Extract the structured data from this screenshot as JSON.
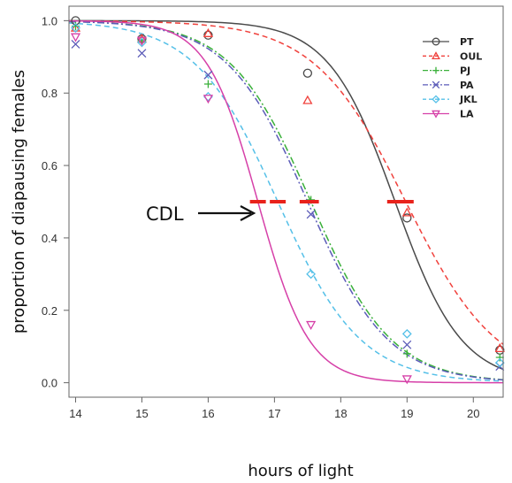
{
  "chart_data": {
    "type": "line",
    "xlabel": "hours of light",
    "ylabel": "proportion of diapausing females",
    "xlim": [
      13.9,
      20.45
    ],
    "ylim": [
      -0.04,
      1.04
    ],
    "x_ticks": [
      "14",
      "15",
      "16",
      "17",
      "18",
      "19",
      "20"
    ],
    "y_ticks": [
      "0.0",
      "0.2",
      "0.4",
      "0.6",
      "0.8",
      "1.0"
    ],
    "grid": false,
    "legend_position": "top-right",
    "annotation": {
      "text": "CDL",
      "y": 0.5
    },
    "series": [
      {
        "name": "PT",
        "marker": "circle",
        "color": "#4a4a4a",
        "dash": "none",
        "cdl": 18.82,
        "x": [
          14,
          15,
          16,
          17.5,
          19,
          20.4
        ],
        "y": [
          1.0,
          0.95,
          0.96,
          0.855,
          0.455,
          0.09
        ]
      },
      {
        "name": "OUL",
        "marker": "triangle",
        "color": "#f0413c",
        "dash": "dashed",
        "cdl": 18.98,
        "x": [
          14,
          15,
          16,
          17.5,
          19,
          20.4
        ],
        "y": [
          0.98,
          0.95,
          0.965,
          0.78,
          0.47,
          0.095
        ]
      },
      {
        "name": "PJ",
        "marker": "plus",
        "color": "#3ab03a",
        "dash": "dotdash",
        "cdl": 17.55,
        "x": [
          14,
          15,
          16,
          17.55,
          19,
          20.4
        ],
        "y": [
          0.985,
          0.945,
          0.825,
          0.505,
          0.08,
          0.07
        ]
      },
      {
        "name": "PA",
        "marker": "x",
        "color": "#5b5bb8",
        "dash": "dotdash",
        "cdl": 17.5,
        "x": [
          14,
          15,
          16,
          17.55,
          19,
          20.4
        ],
        "y": [
          0.935,
          0.91,
          0.85,
          0.465,
          0.105,
          0.045
        ]
      },
      {
        "name": "JKL",
        "marker": "diamond",
        "color": "#55c0e8",
        "dash": "dashed",
        "cdl": 17.05,
        "x": [
          14,
          15,
          16,
          17.55,
          19,
          20.4
        ],
        "y": [
          0.98,
          0.94,
          0.79,
          0.3,
          0.135,
          0.055
        ]
      },
      {
        "name": "LA",
        "marker": "invtriangle",
        "color": "#d640a8",
        "dash": "solid",
        "cdl": 16.75,
        "x": [
          14,
          15,
          16,
          17.55,
          19
        ],
        "y": [
          0.955,
          0.945,
          0.785,
          0.16,
          0.01
        ]
      }
    ],
    "curves": [
      {
        "series": "PT",
        "midpoint": 18.82,
        "slope": 2.0,
        "color": "#4a4a4a",
        "dash": "none"
      },
      {
        "series": "OUL",
        "midpoint": 18.98,
        "slope": 1.45,
        "color": "#f0413c",
        "dash": "6 4"
      },
      {
        "series": "PJ",
        "midpoint": 17.55,
        "slope": 1.65,
        "color": "#3ab03a",
        "dash": "8 3 2 3"
      },
      {
        "series": "PA",
        "midpoint": 17.5,
        "slope": 1.65,
        "color": "#5b5bb8",
        "dash": "8 3 2 3"
      },
      {
        "series": "JKL",
        "midpoint": 17.05,
        "slope": 1.6,
        "color": "#55c0e8",
        "dash": "6 4"
      },
      {
        "series": "LA",
        "midpoint": 16.75,
        "slope": 2.6,
        "color": "#d640a8",
        "dash": "none"
      }
    ]
  }
}
